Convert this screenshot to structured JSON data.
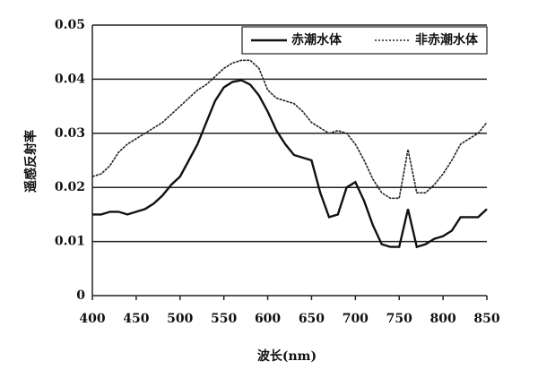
{
  "chart_data": {
    "type": "line",
    "xlabel": "波长(nm)",
    "ylabel": "遥感反射率",
    "x": [
      400,
      410,
      420,
      430,
      440,
      450,
      460,
      470,
      480,
      490,
      500,
      510,
      520,
      530,
      540,
      550,
      560,
      570,
      580,
      590,
      600,
      610,
      620,
      630,
      640,
      650,
      660,
      670,
      680,
      690,
      700,
      710,
      720,
      730,
      740,
      750,
      760,
      770,
      780,
      790,
      800,
      810,
      820,
      830,
      840,
      850
    ],
    "series": [
      {
        "name": "赤潮水体",
        "color": "#111111",
        "style": "solid",
        "values": [
          0.015,
          0.015,
          0.0155,
          0.0155,
          0.015,
          0.0155,
          0.016,
          0.017,
          0.0185,
          0.0205,
          0.022,
          0.025,
          0.028,
          0.032,
          0.036,
          0.0385,
          0.0395,
          0.0398,
          0.039,
          0.037,
          0.034,
          0.0305,
          0.028,
          0.026,
          0.0255,
          0.025,
          0.019,
          0.0145,
          0.015,
          0.02,
          0.021,
          0.0175,
          0.013,
          0.0095,
          0.009,
          0.009,
          0.016,
          0.009,
          0.0095,
          0.0105,
          0.011,
          0.012,
          0.0145,
          0.0145,
          0.0145,
          0.016
        ]
      },
      {
        "name": "非赤潮水体",
        "color": "#222222",
        "style": "dotted",
        "values": [
          0.022,
          0.0225,
          0.024,
          0.0265,
          0.028,
          0.029,
          0.03,
          0.031,
          0.032,
          0.0335,
          0.035,
          0.0365,
          0.038,
          0.039,
          0.0405,
          0.042,
          0.043,
          0.0435,
          0.0435,
          0.042,
          0.038,
          0.0365,
          0.036,
          0.0355,
          0.034,
          0.032,
          0.031,
          0.03,
          0.0305,
          0.03,
          0.028,
          0.025,
          0.0215,
          0.019,
          0.018,
          0.018,
          0.027,
          0.019,
          0.019,
          0.0205,
          0.0225,
          0.025,
          0.028,
          0.029,
          0.03,
          0.032
        ]
      }
    ],
    "xlim": [
      400,
      850
    ],
    "xticks": [
      400,
      450,
      500,
      550,
      600,
      650,
      700,
      750,
      800,
      850
    ],
    "ylim": [
      0,
      0.05
    ],
    "yticks": [
      0,
      0.01,
      0.02,
      0.03,
      0.04,
      0.05
    ],
    "grid": true,
    "legend": "top-right"
  }
}
